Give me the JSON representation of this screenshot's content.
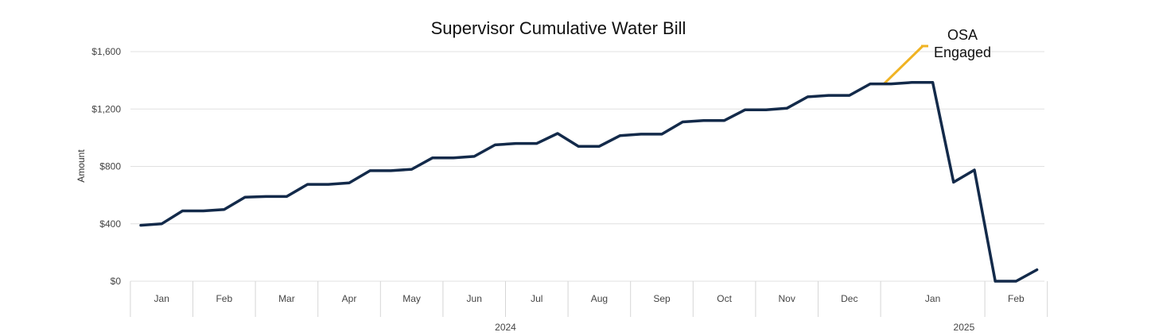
{
  "chart_data": {
    "type": "line",
    "title": "Supervisor Cumulative Water Bill",
    "xlabel": "",
    "ylabel": "Amount",
    "ylim": [
      0,
      1600
    ],
    "yticks": [
      {
        "value": 0,
        "label": "$0"
      },
      {
        "value": 400,
        "label": "$400"
      },
      {
        "value": 800,
        "label": "$800"
      },
      {
        "value": 1200,
        "label": "$1,200"
      },
      {
        "value": 1600,
        "label": "$1,600"
      }
    ],
    "grid": true,
    "month_groups": [
      {
        "label": "Jan",
        "start": 0,
        "end": 3
      },
      {
        "label": "Feb",
        "start": 3,
        "end": 6
      },
      {
        "label": "Mar",
        "start": 6,
        "end": 9
      },
      {
        "label": "Apr",
        "start": 9,
        "end": 12
      },
      {
        "label": "May",
        "start": 12,
        "end": 15
      },
      {
        "label": "Jun",
        "start": 15,
        "end": 18
      },
      {
        "label": "Jul",
        "start": 18,
        "end": 21
      },
      {
        "label": "Aug",
        "start": 21,
        "end": 24
      },
      {
        "label": "Sep",
        "start": 24,
        "end": 27
      },
      {
        "label": "Oct",
        "start": 27,
        "end": 30
      },
      {
        "label": "Nov",
        "start": 30,
        "end": 33
      },
      {
        "label": "Dec",
        "start": 33,
        "end": 36
      },
      {
        "label": "Jan",
        "start": 36,
        "end": 41
      },
      {
        "label": "Feb",
        "start": 41,
        "end": 44
      }
    ],
    "year_groups": [
      {
        "label": "2024",
        "start": 0,
        "end": 36
      },
      {
        "label": "2025",
        "start": 36,
        "end": 44
      }
    ],
    "series": [
      {
        "name": "Cumulative Water Bill",
        "color": "#132a4a",
        "values": [
          390,
          400,
          490,
          490,
          500,
          585,
          590,
          590,
          675,
          675,
          685,
          770,
          770,
          780,
          860,
          860,
          870,
          950,
          960,
          960,
          1030,
          940,
          940,
          1015,
          1025,
          1025,
          1110,
          1120,
          1120,
          1195,
          1195,
          1205,
          1285,
          1295,
          1295,
          1375,
          1375,
          1385,
          1385,
          690,
          775,
          0,
          0,
          80
        ]
      }
    ],
    "annotations": [
      {
        "text_lines": [
          "OSA",
          "Engaged"
        ],
        "at_index": 35.5,
        "at_value": 1380,
        "color": "#f0b323"
      }
    ]
  }
}
